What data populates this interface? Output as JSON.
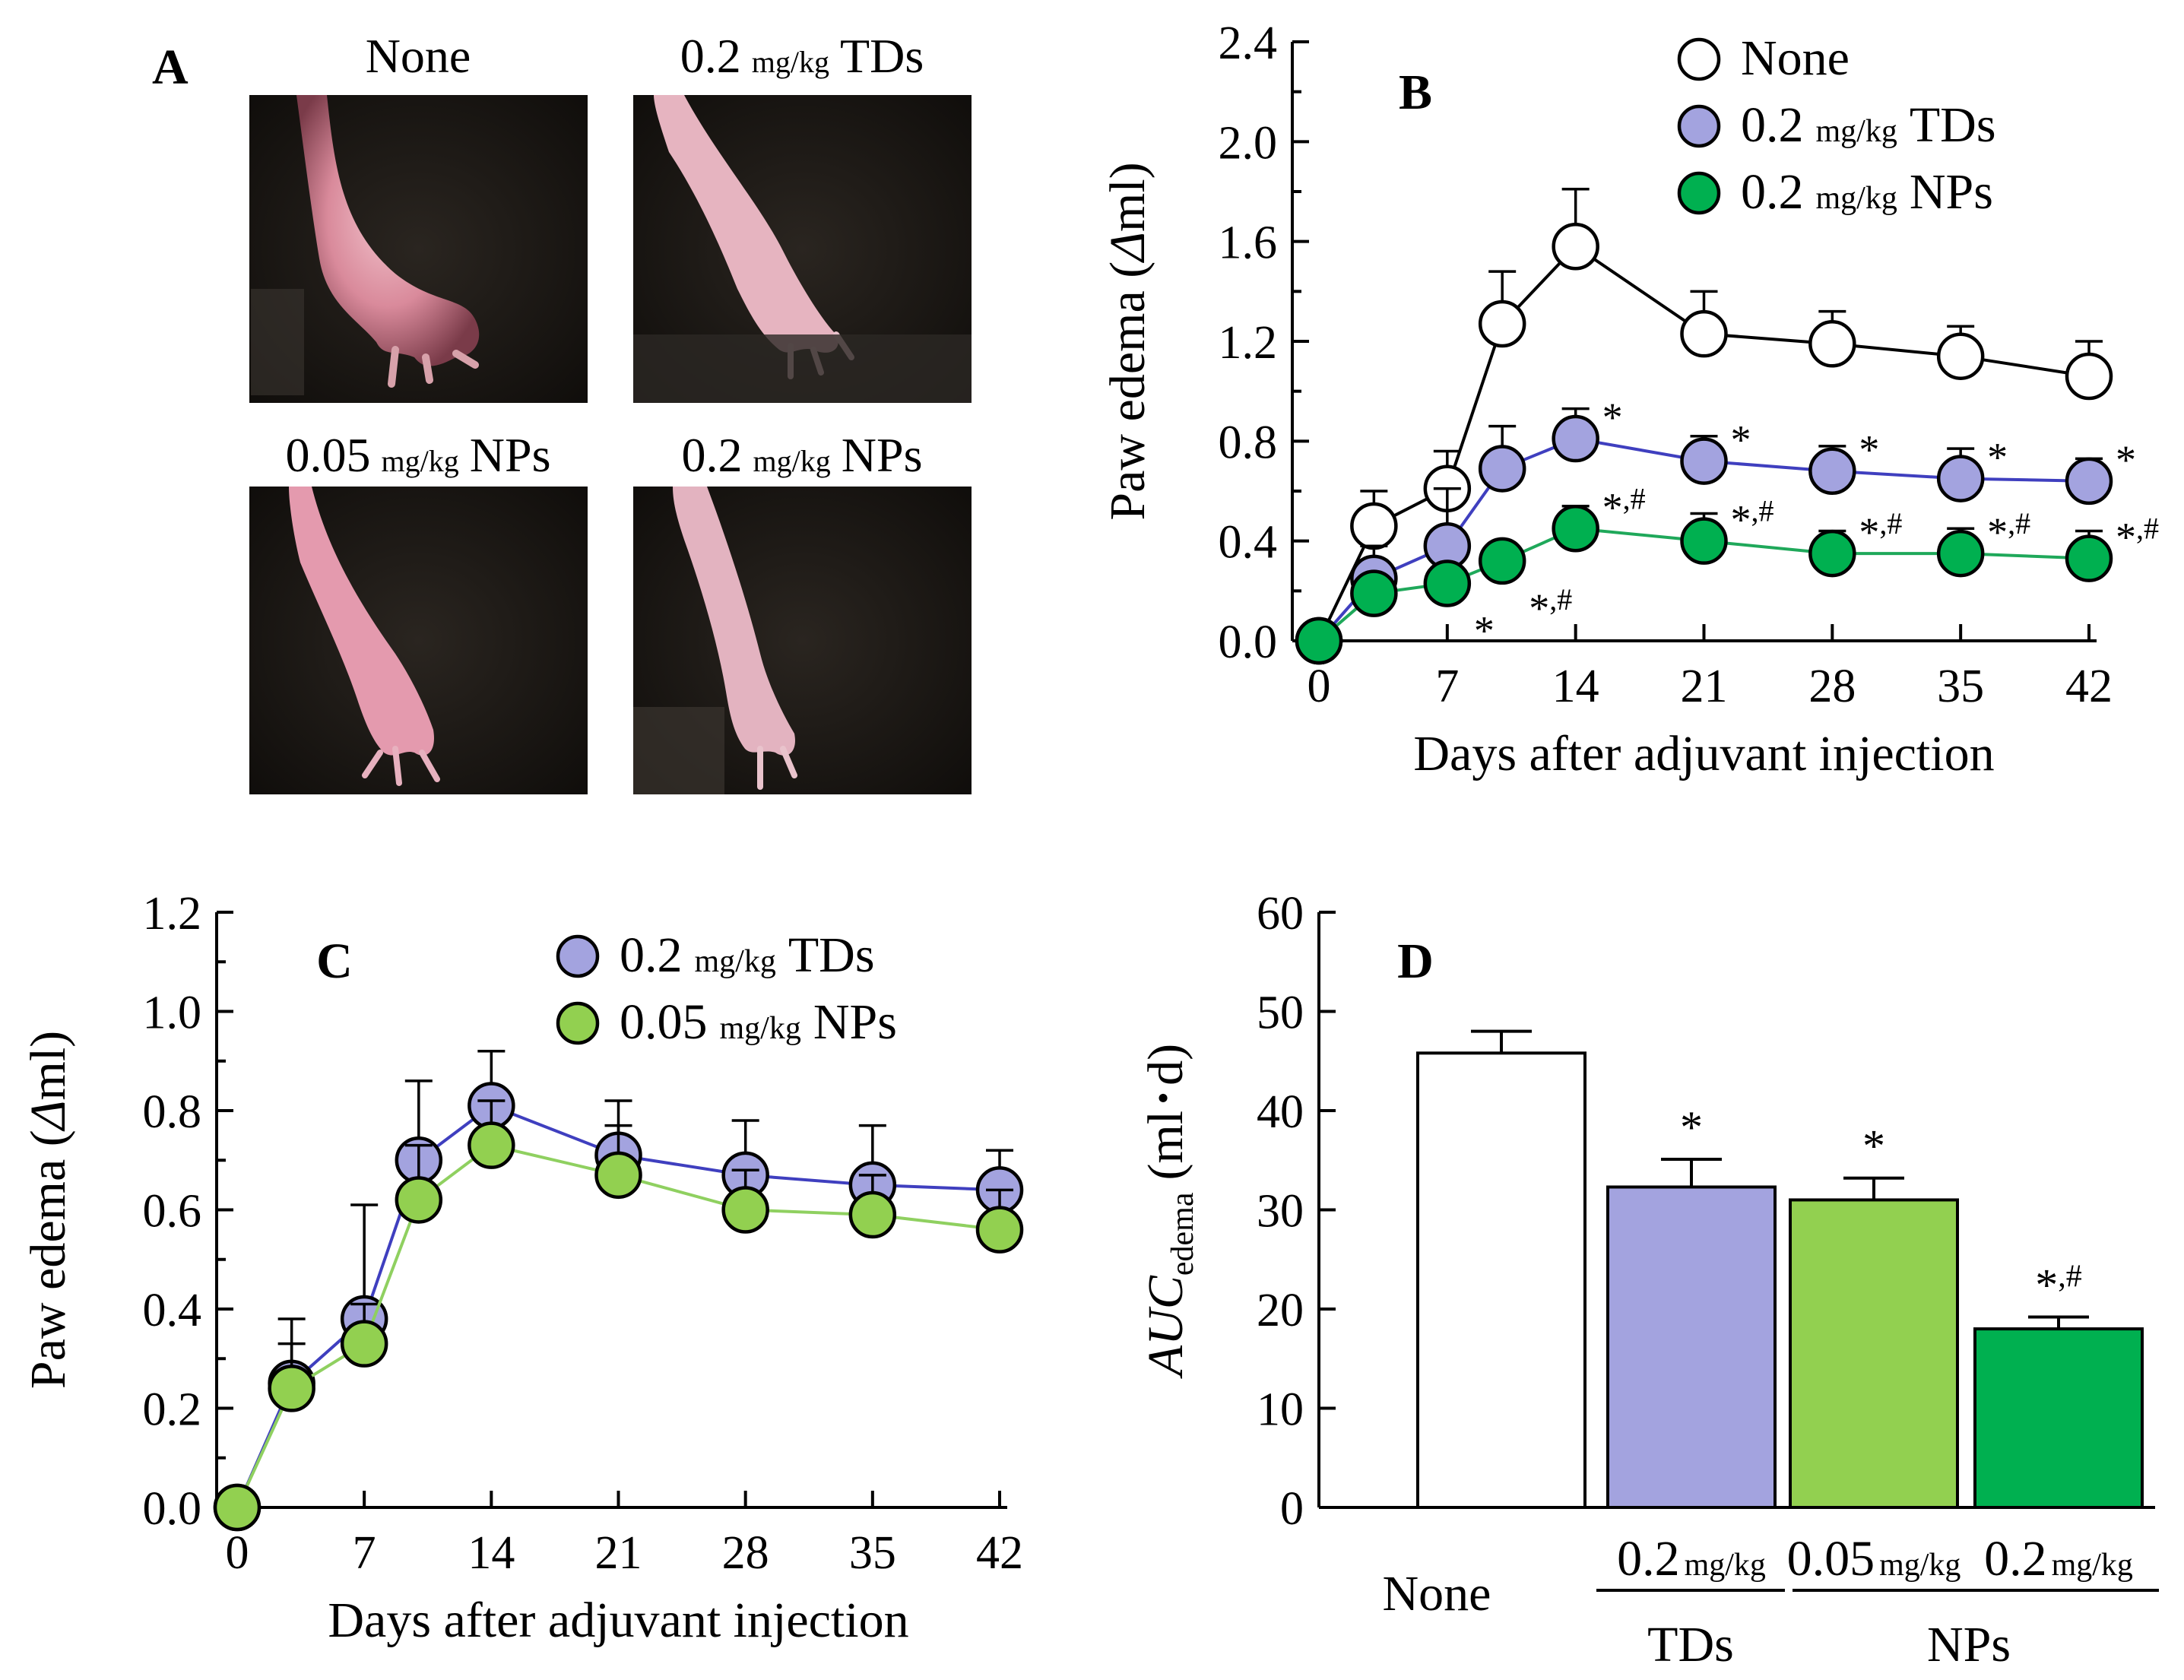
{
  "panel_a": {
    "letter": "A",
    "photos": [
      {
        "dose": "",
        "unit": "",
        "group": "None"
      },
      {
        "dose": "0.2",
        "unit": "mg/kg",
        "group": "TDs"
      },
      {
        "dose": "0.05",
        "unit": "mg/kg",
        "group": "NPs"
      },
      {
        "dose": "0.2",
        "unit": "mg/kg",
        "group": "NPs"
      }
    ]
  },
  "colors": {
    "none": "#ffffff",
    "tds": "#a3a3df",
    "nps_low": "#92d050",
    "nps_high": "#00b050",
    "line_none": "#000000",
    "line_tds": "#3f3fbf",
    "line_nps_low": "#8fd060",
    "line_nps_high": "#1fa85a"
  },
  "chart_data": [
    {
      "panel": "B",
      "type": "line",
      "ylabel_main": "Paw edema (",
      "ylabel_delta": "Δ",
      "ylabel_end": "ml)",
      "xlabel": "Days after adjuvant injection",
      "xticks": [
        "0",
        "7",
        "14",
        "21",
        "28",
        "35",
        "42"
      ],
      "yticks": [
        "0.0",
        "0.4",
        "0.8",
        "1.2",
        "1.6",
        "2.0",
        "2.4"
      ],
      "xlim": [
        0,
        42
      ],
      "ylim": [
        0,
        2.4
      ],
      "x": [
        0,
        3,
        7,
        10,
        14,
        21,
        28,
        35,
        42
      ],
      "series": [
        {
          "key": "none",
          "name": "None",
          "dose": "",
          "unit": "",
          "group": "None",
          "values": [
            0,
            0.46,
            0.61,
            1.27,
            1.58,
            1.23,
            1.19,
            1.14,
            1.06
          ],
          "errors": [
            0,
            0.14,
            0.15,
            0.21,
            0.23,
            0.17,
            0.13,
            0.12,
            0.14
          ],
          "marks": [
            "",
            "",
            "",
            "",
            "",
            "",
            "",
            "",
            ""
          ]
        },
        {
          "key": "tds",
          "name": "0.2 mg/kg TDs",
          "dose": "0.2",
          "unit": "mg/kg",
          "group": "TDs",
          "values": [
            0,
            0.25,
            0.38,
            0.69,
            0.81,
            0.72,
            0.68,
            0.65,
            0.64
          ],
          "errors": [
            0,
            0.13,
            0.23,
            0.17,
            0.12,
            0.1,
            0.1,
            0.12,
            0.09
          ],
          "marks": [
            "",
            "",
            "",
            "",
            "*",
            "*",
            "*",
            "*",
            "*"
          ]
        },
        {
          "key": "nps_high",
          "name": "0.2 mg/kg NPs",
          "dose": "0.2",
          "unit": "mg/kg",
          "group": "NPs",
          "values": [
            0,
            0.19,
            0.23,
            0.32,
            0.45,
            0.4,
            0.35,
            0.35,
            0.33
          ],
          "errors": [
            0,
            0.04,
            0.05,
            0.05,
            0.09,
            0.11,
            0.09,
            0.1,
            0.11
          ],
          "marks": [
            "",
            "",
            "*",
            "*,#",
            "*,#",
            "*,#",
            "*,#",
            "*,#",
            "*,#"
          ]
        }
      ]
    },
    {
      "panel": "C",
      "type": "line",
      "ylabel_main": "Paw edema (",
      "ylabel_delta": "Δ",
      "ylabel_end": "ml)",
      "xlabel": "Days after adjuvant injection",
      "xticks": [
        "0",
        "7",
        "14",
        "21",
        "28",
        "35",
        "42"
      ],
      "yticks": [
        "0.0",
        "0.2",
        "0.4",
        "0.6",
        "0.8",
        "1.0",
        "1.2"
      ],
      "xlim": [
        0,
        42
      ],
      "ylim": [
        0,
        1.2
      ],
      "x": [
        0,
        3,
        7,
        10,
        14,
        21,
        28,
        35,
        42
      ],
      "series": [
        {
          "key": "tds",
          "name": "0.2 mg/kg TDs",
          "dose": "0.2",
          "unit": "mg/kg",
          "group": "TDs",
          "values": [
            0,
            0.25,
            0.38,
            0.7,
            0.81,
            0.71,
            0.67,
            0.65,
            0.64
          ],
          "errors": [
            0,
            0.13,
            0.23,
            0.16,
            0.11,
            0.11,
            0.11,
            0.12,
            0.08
          ]
        },
        {
          "key": "nps_low",
          "name": "0.05 mg/kg NPs",
          "dose": "0.05",
          "unit": "mg/kg",
          "group": "NPs",
          "values": [
            0,
            0.24,
            0.33,
            0.62,
            0.73,
            0.67,
            0.6,
            0.59,
            0.56
          ],
          "errors": [
            0,
            0.09,
            0.08,
            0.11,
            0.09,
            0.1,
            0.08,
            0.08,
            0.08
          ]
        }
      ]
    },
    {
      "panel": "D",
      "type": "bar",
      "ylabel_main": "AUC",
      "ylabel_sub": "edema",
      "ylabel_unit": "(ml･d)",
      "yticks": [
        "0",
        "10",
        "20",
        "30",
        "40",
        "50",
        "60"
      ],
      "ylim": [
        0,
        60
      ],
      "categories": [
        {
          "key": "none",
          "dose": "",
          "unit": "",
          "name": "None",
          "value": 45.8,
          "error": 2.2,
          "mark": ""
        },
        {
          "key": "tds",
          "dose": "0.2",
          "unit": "mg/kg",
          "name": "TDs",
          "value": 32.3,
          "error": 2.8,
          "mark": "*"
        },
        {
          "key": "nps_low",
          "dose": "0.05",
          "unit": "mg/kg",
          "name": "NPs",
          "value": 31.0,
          "error": 2.2,
          "mark": "*"
        },
        {
          "key": "nps_high",
          "dose": "0.2",
          "unit": "mg/kg",
          "name": "NPs",
          "value": 18.0,
          "error": 1.2,
          "mark": "*,#"
        }
      ],
      "group_labels": {
        "tds": "TDs",
        "nps": "NPs"
      }
    }
  ]
}
